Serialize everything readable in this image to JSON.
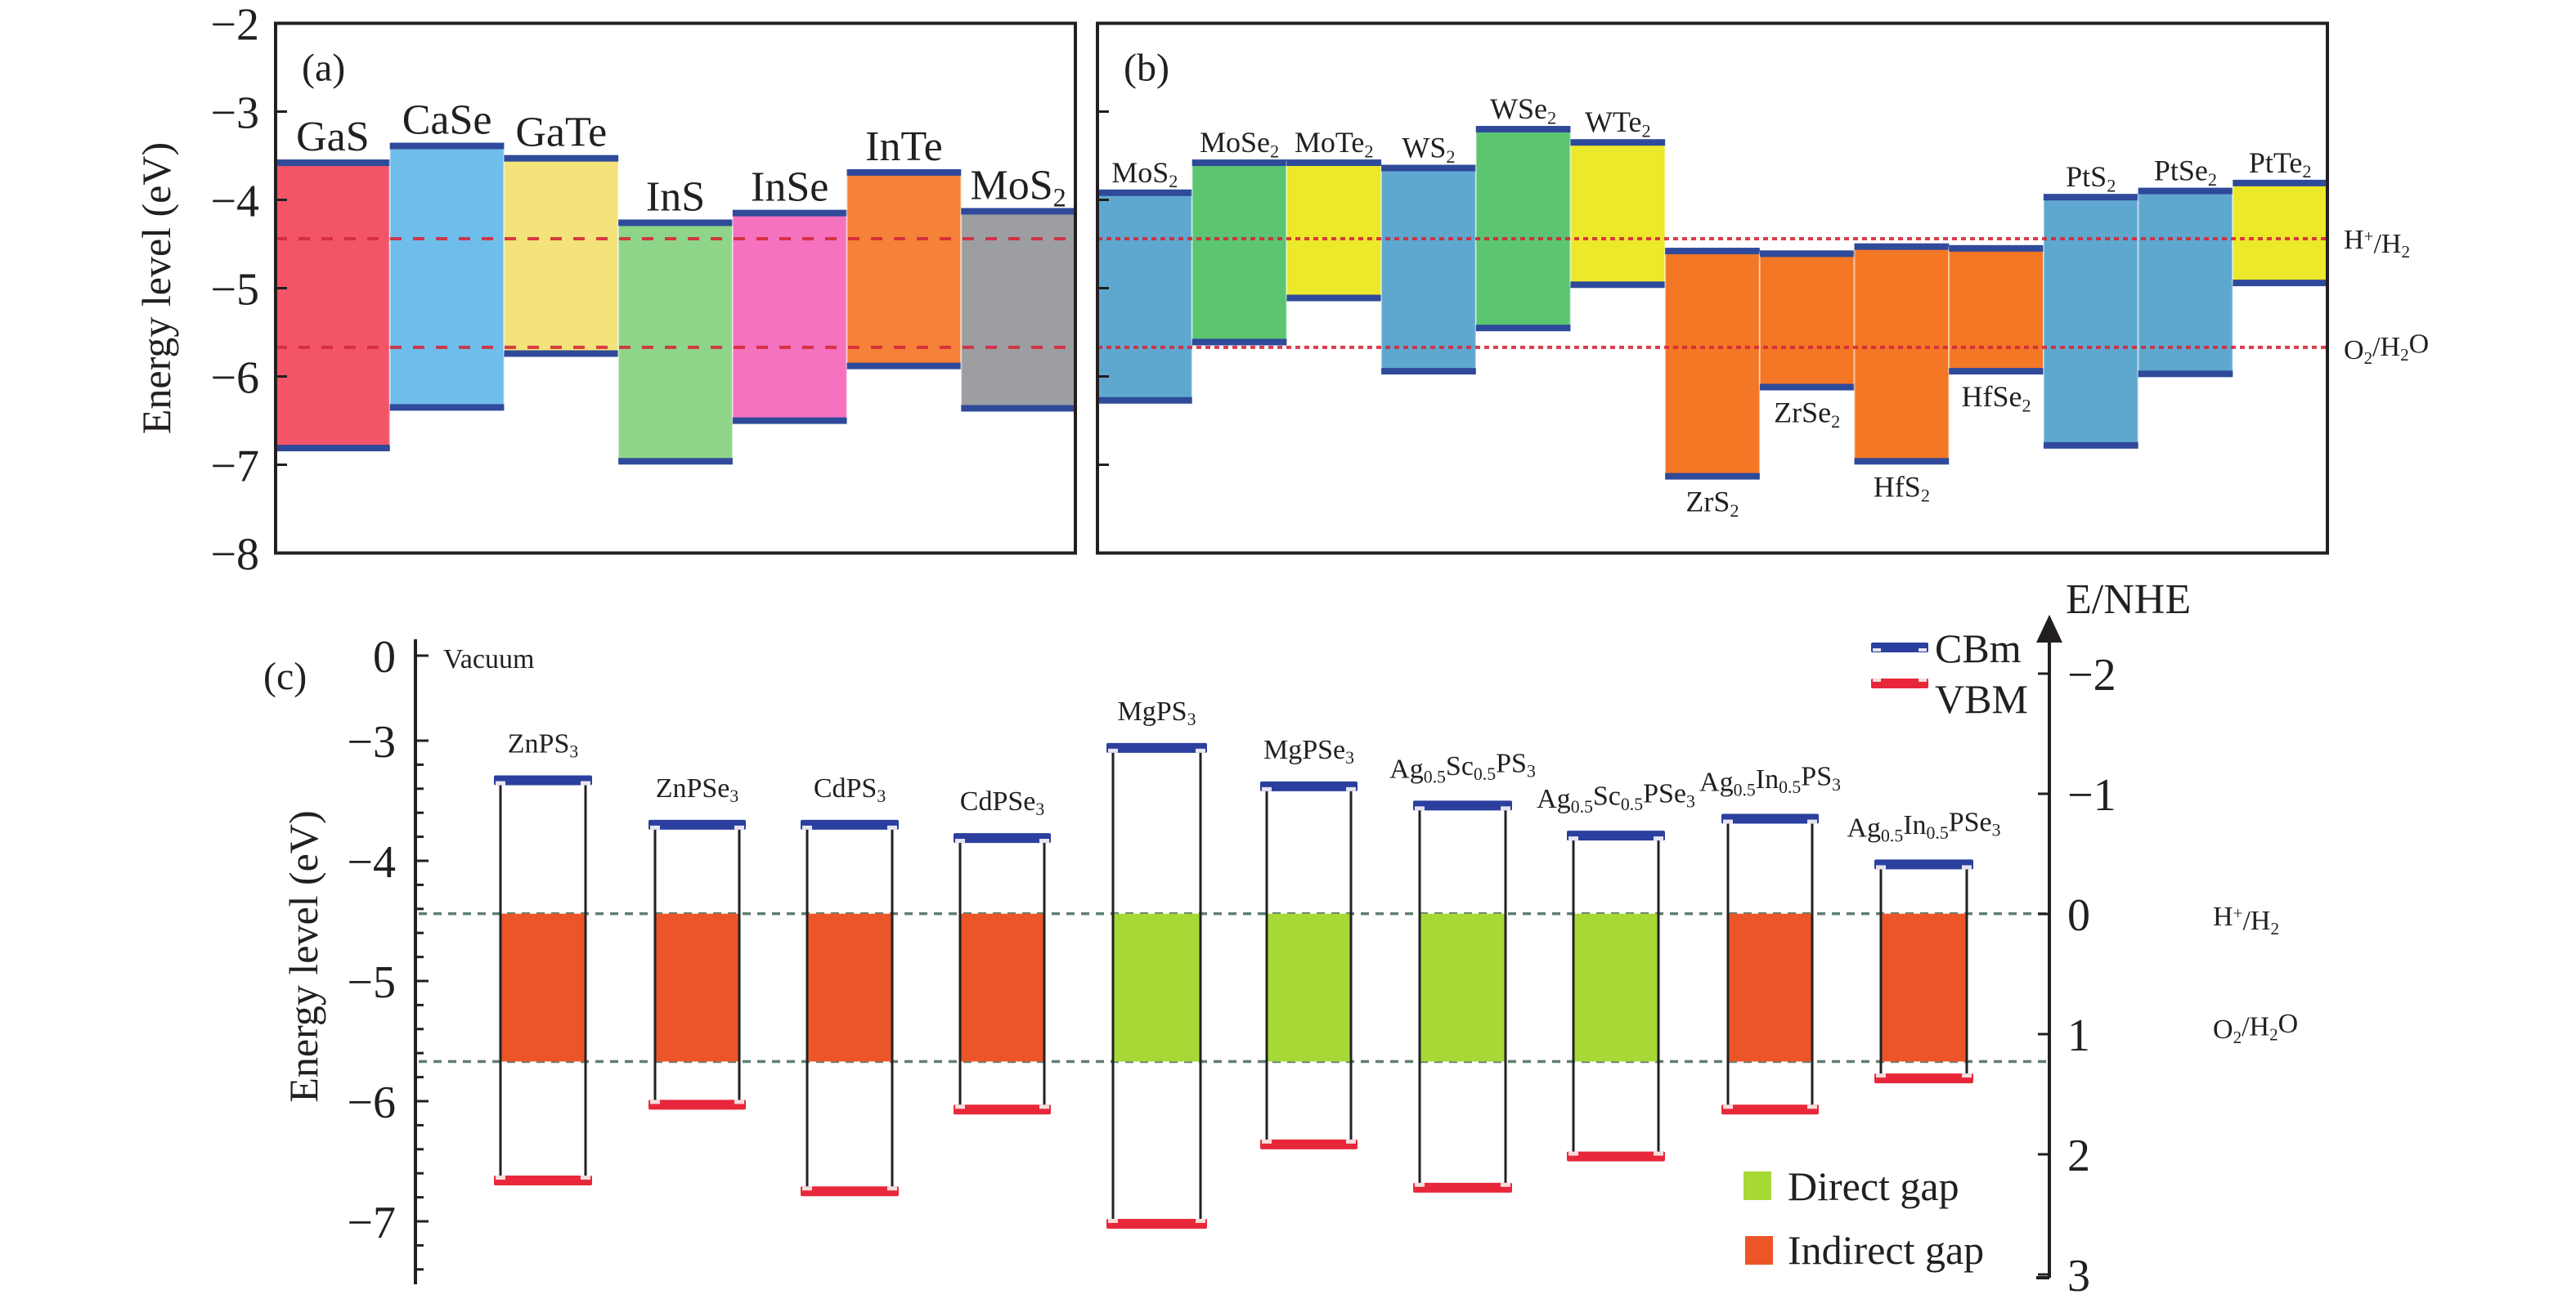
{
  "figure": {
    "panels": [
      "(a)",
      "(b)",
      "(c)"
    ]
  },
  "colors": {
    "band_edge": "#2f4a9a",
    "redox_line_ab": "#d42a3a",
    "redox_line_c": "#5f7f70",
    "cbm": "#2a3f9e",
    "vbm": "#e8283a",
    "direct_gap": "#a6d936",
    "indirect_gap": "#ec5528",
    "axis": "#231f20"
  },
  "chart_data": [
    {
      "id": "a",
      "type": "bar",
      "panel_label": "(a)",
      "ylabel": "Energy level (eV)",
      "ylim": [
        -8,
        -2
      ],
      "yticks": [
        -2,
        -3,
        -4,
        -5,
        -6,
        -7,
        -8
      ],
      "ytick_labels": [
        "−2",
        "−3",
        "−4",
        "−5",
        "−6",
        "−7",
        "−8"
      ],
      "grid": false,
      "reference_lines": [
        {
          "name": "H+/H2",
          "value": -4.44,
          "style": "dashed"
        },
        {
          "name": "O2/H2O",
          "value": -5.67,
          "style": "dashed"
        }
      ],
      "series": [
        {
          "name": "GaS",
          "label_main": "GaS",
          "label_sub": "",
          "cbm": -3.57,
          "vbm": -6.82,
          "color": "#f25568",
          "label_pos": "top"
        },
        {
          "name": "CaSe",
          "label_main": "CaSe",
          "label_sub": "",
          "cbm": -3.38,
          "vbm": -6.36,
          "color": "#6fbdeb",
          "label_pos": "top"
        },
        {
          "name": "GaTe",
          "label_main": "GaTe",
          "label_sub": "",
          "cbm": -3.52,
          "vbm": -5.75,
          "color": "#f4e37b",
          "label_pos": "top"
        },
        {
          "name": "InS",
          "label_main": "InS",
          "label_sub": "",
          "cbm": -4.25,
          "vbm": -6.97,
          "color": "#8ed58a",
          "label_pos": "top"
        },
        {
          "name": "InSe",
          "label_main": "InSe",
          "label_sub": "",
          "cbm": -4.14,
          "vbm": -6.51,
          "color": "#f472be",
          "label_pos": "top"
        },
        {
          "name": "InTe",
          "label_main": "InTe",
          "label_sub": "",
          "cbm": -3.68,
          "vbm": -5.89,
          "color": "#f58238",
          "label_pos": "top"
        },
        {
          "name": "MoS2",
          "label_main": "MoS",
          "label_sub": "2",
          "cbm": -4.12,
          "vbm": -6.37,
          "color": "#9d9ea2",
          "label_pos": "top"
        }
      ]
    },
    {
      "id": "b",
      "type": "bar",
      "panel_label": "(b)",
      "ylabel": "",
      "ylim": [
        -8,
        -2
      ],
      "grid": false,
      "reference_lines": [
        {
          "name": "H+/H2",
          "value": -4.44,
          "style": "dotted",
          "label_main": "H",
          "label_sup": "+",
          "label_rest": "/H",
          "label_sub": "2"
        },
        {
          "name": "O2/H2O",
          "value": -5.67,
          "style": "dotted",
          "label_main": "O",
          "label_sub": "2",
          "label_rest": "/H",
          "label_sub2": "2",
          "label_end": "O"
        }
      ],
      "series": [
        {
          "name": "MoS2",
          "label_main": "MoS",
          "label_sub": "2",
          "cbm": -3.91,
          "vbm": -6.28,
          "color": "#5ea8d0",
          "label_pos": "top"
        },
        {
          "name": "MoSe2",
          "label_main": "MoSe",
          "label_sub": "2",
          "cbm": -3.57,
          "vbm": -5.62,
          "color": "#5bc572",
          "label_pos": "top"
        },
        {
          "name": "MoTe2",
          "label_main": "MoTe",
          "label_sub": "2",
          "cbm": -3.57,
          "vbm": -5.12,
          "color": "#ece82a",
          "label_pos": "top"
        },
        {
          "name": "WS2",
          "label_main": "WS",
          "label_sub": "2",
          "cbm": -3.63,
          "vbm": -5.95,
          "color": "#5ea8d0",
          "label_pos": "top"
        },
        {
          "name": "WSe2",
          "label_main": "WSe",
          "label_sub": "2",
          "cbm": -3.19,
          "vbm": -5.46,
          "color": "#5bc572",
          "label_pos": "top"
        },
        {
          "name": "WTe2",
          "label_main": "WTe",
          "label_sub": "2",
          "cbm": -3.34,
          "vbm": -4.97,
          "color": "#ece82a",
          "label_pos": "top"
        },
        {
          "name": "ZrS2",
          "label_main": "ZrS",
          "label_sub": "2",
          "cbm": -4.57,
          "vbm": -7.14,
          "color": "#f47725",
          "label_pos": "bottom"
        },
        {
          "name": "ZrSe2",
          "label_main": "ZrSe",
          "label_sub": "2",
          "cbm": -4.6,
          "vbm": -6.13,
          "color": "#f47725",
          "label_pos": "bottom"
        },
        {
          "name": "HfS2",
          "label_main": "HfS",
          "label_sub": "2",
          "cbm": -4.52,
          "vbm": -6.97,
          "color": "#f47725",
          "label_pos": "bottom"
        },
        {
          "name": "HfSe2",
          "label_main": "HfSe",
          "label_sub": "2",
          "cbm": -4.54,
          "vbm": -5.95,
          "color": "#f47725",
          "label_pos": "bottom"
        },
        {
          "name": "PtS2",
          "label_main": "PtS",
          "label_sub": "2",
          "cbm": -3.96,
          "vbm": -6.79,
          "color": "#5ea8d0",
          "label_pos": "top"
        },
        {
          "name": "PtSe2",
          "label_main": "PtSe",
          "label_sub": "2",
          "cbm": -3.89,
          "vbm": -5.98,
          "color": "#5ea8d0",
          "label_pos": "top"
        },
        {
          "name": "PtTe2",
          "label_main": "PtTe",
          "label_sub": "2",
          "cbm": -3.8,
          "vbm": -4.95,
          "color": "#ece82a",
          "label_pos": "top"
        }
      ]
    },
    {
      "id": "c",
      "type": "bar",
      "panel_label": "(c)",
      "ylabel": "Energy level (eV)",
      "ylabel_right": "E/NHE",
      "ylim": [
        -7.5,
        0
      ],
      "yticks": [
        0,
        -3,
        -4,
        -5,
        -6,
        -7
      ],
      "ytick_labels": [
        "0",
        "−3",
        "−4",
        "−5",
        "−6",
        "−7"
      ],
      "vacuum_label": "Vacuum",
      "right_ticks": [
        -2,
        -1,
        0,
        1,
        2,
        3
      ],
      "right_tick_labels": [
        "−2",
        "−1",
        "0",
        "1",
        "2",
        "3"
      ],
      "grid": false,
      "reference_lines": [
        {
          "name": "H+/H2",
          "value": -4.44,
          "nhe": 0,
          "style": "dashed"
        },
        {
          "name": "O2/H2O",
          "value": -5.67,
          "nhe": 1.23,
          "style": "dashed"
        }
      ],
      "legend": {
        "placement": "top-right / bottom-right",
        "cbm_label": "CBm",
        "vbm_label": "VBM",
        "direct_label": "Direct gap",
        "indirect_label": "Indirect gap"
      },
      "series": [
        {
          "name": "ZnPS3",
          "label": [
            [
              "ZnPS",
              ""
            ],
            [
              "3",
              "sub"
            ]
          ],
          "cbm": -3.33,
          "vbm": -6.66,
          "gap_type": "indirect"
        },
        {
          "name": "ZnPSe3",
          "label": [
            [
              "ZnPSe",
              ""
            ],
            [
              "3",
              "sub"
            ]
          ],
          "cbm": -3.7,
          "vbm": -6.03,
          "gap_type": "indirect"
        },
        {
          "name": "CdPS3",
          "label": [
            [
              "CdPS",
              ""
            ],
            [
              "3",
              "sub"
            ]
          ],
          "cbm": -3.7,
          "vbm": -6.75,
          "gap_type": "indirect"
        },
        {
          "name": "CdPSe3",
          "label": [
            [
              "CdPSe",
              ""
            ],
            [
              "3",
              "sub"
            ]
          ],
          "cbm": -3.81,
          "vbm": -6.07,
          "gap_type": "indirect"
        },
        {
          "name": "MgPS3",
          "label": [
            [
              "MgPS",
              ""
            ],
            [
              "3",
              "sub"
            ]
          ],
          "cbm": -3.06,
          "vbm": -7.02,
          "gap_type": "direct"
        },
        {
          "name": "MgPSe3",
          "label": [
            [
              "MgPSe",
              ""
            ],
            [
              "3",
              "sub"
            ]
          ],
          "cbm": -3.38,
          "vbm": -6.36,
          "gap_type": "direct"
        },
        {
          "name": "Ag0.5Sc0.5PS3",
          "label": [
            [
              "Ag",
              ""
            ],
            [
              "0.5",
              "sub"
            ],
            [
              "Sc",
              ""
            ],
            [
              "0.5",
              "sub"
            ],
            [
              "PS",
              ""
            ],
            [
              "3",
              "sub"
            ]
          ],
          "cbm": -3.54,
          "vbm": -6.72,
          "gap_type": "direct"
        },
        {
          "name": "Ag0.5Sc0.5PSe3",
          "label": [
            [
              "Ag",
              ""
            ],
            [
              "0.5",
              "sub"
            ],
            [
              "Sc",
              ""
            ],
            [
              "0.5",
              "sub"
            ],
            [
              "PSe",
              ""
            ],
            [
              "3",
              "sub"
            ]
          ],
          "cbm": -3.79,
          "vbm": -6.46,
          "gap_type": "direct"
        },
        {
          "name": "Ag0.5In0.5PS3",
          "label": [
            [
              "Ag",
              ""
            ],
            [
              "0.5",
              "sub"
            ],
            [
              "In",
              ""
            ],
            [
              "0.5",
              "sub"
            ],
            [
              "PS",
              ""
            ],
            [
              "3",
              "sub"
            ]
          ],
          "cbm": -3.65,
          "vbm": -6.07,
          "gap_type": "indirect"
        },
        {
          "name": "Ag0.5In0.5PSe3",
          "label": [
            [
              "Ag",
              ""
            ],
            [
              "0.5",
              "sub"
            ],
            [
              "In",
              ""
            ],
            [
              "0.5",
              "sub"
            ],
            [
              "PSe",
              ""
            ],
            [
              "3",
              "sub"
            ]
          ],
          "cbm": -4.03,
          "vbm": -5.81,
          "gap_type": "indirect"
        }
      ]
    }
  ]
}
